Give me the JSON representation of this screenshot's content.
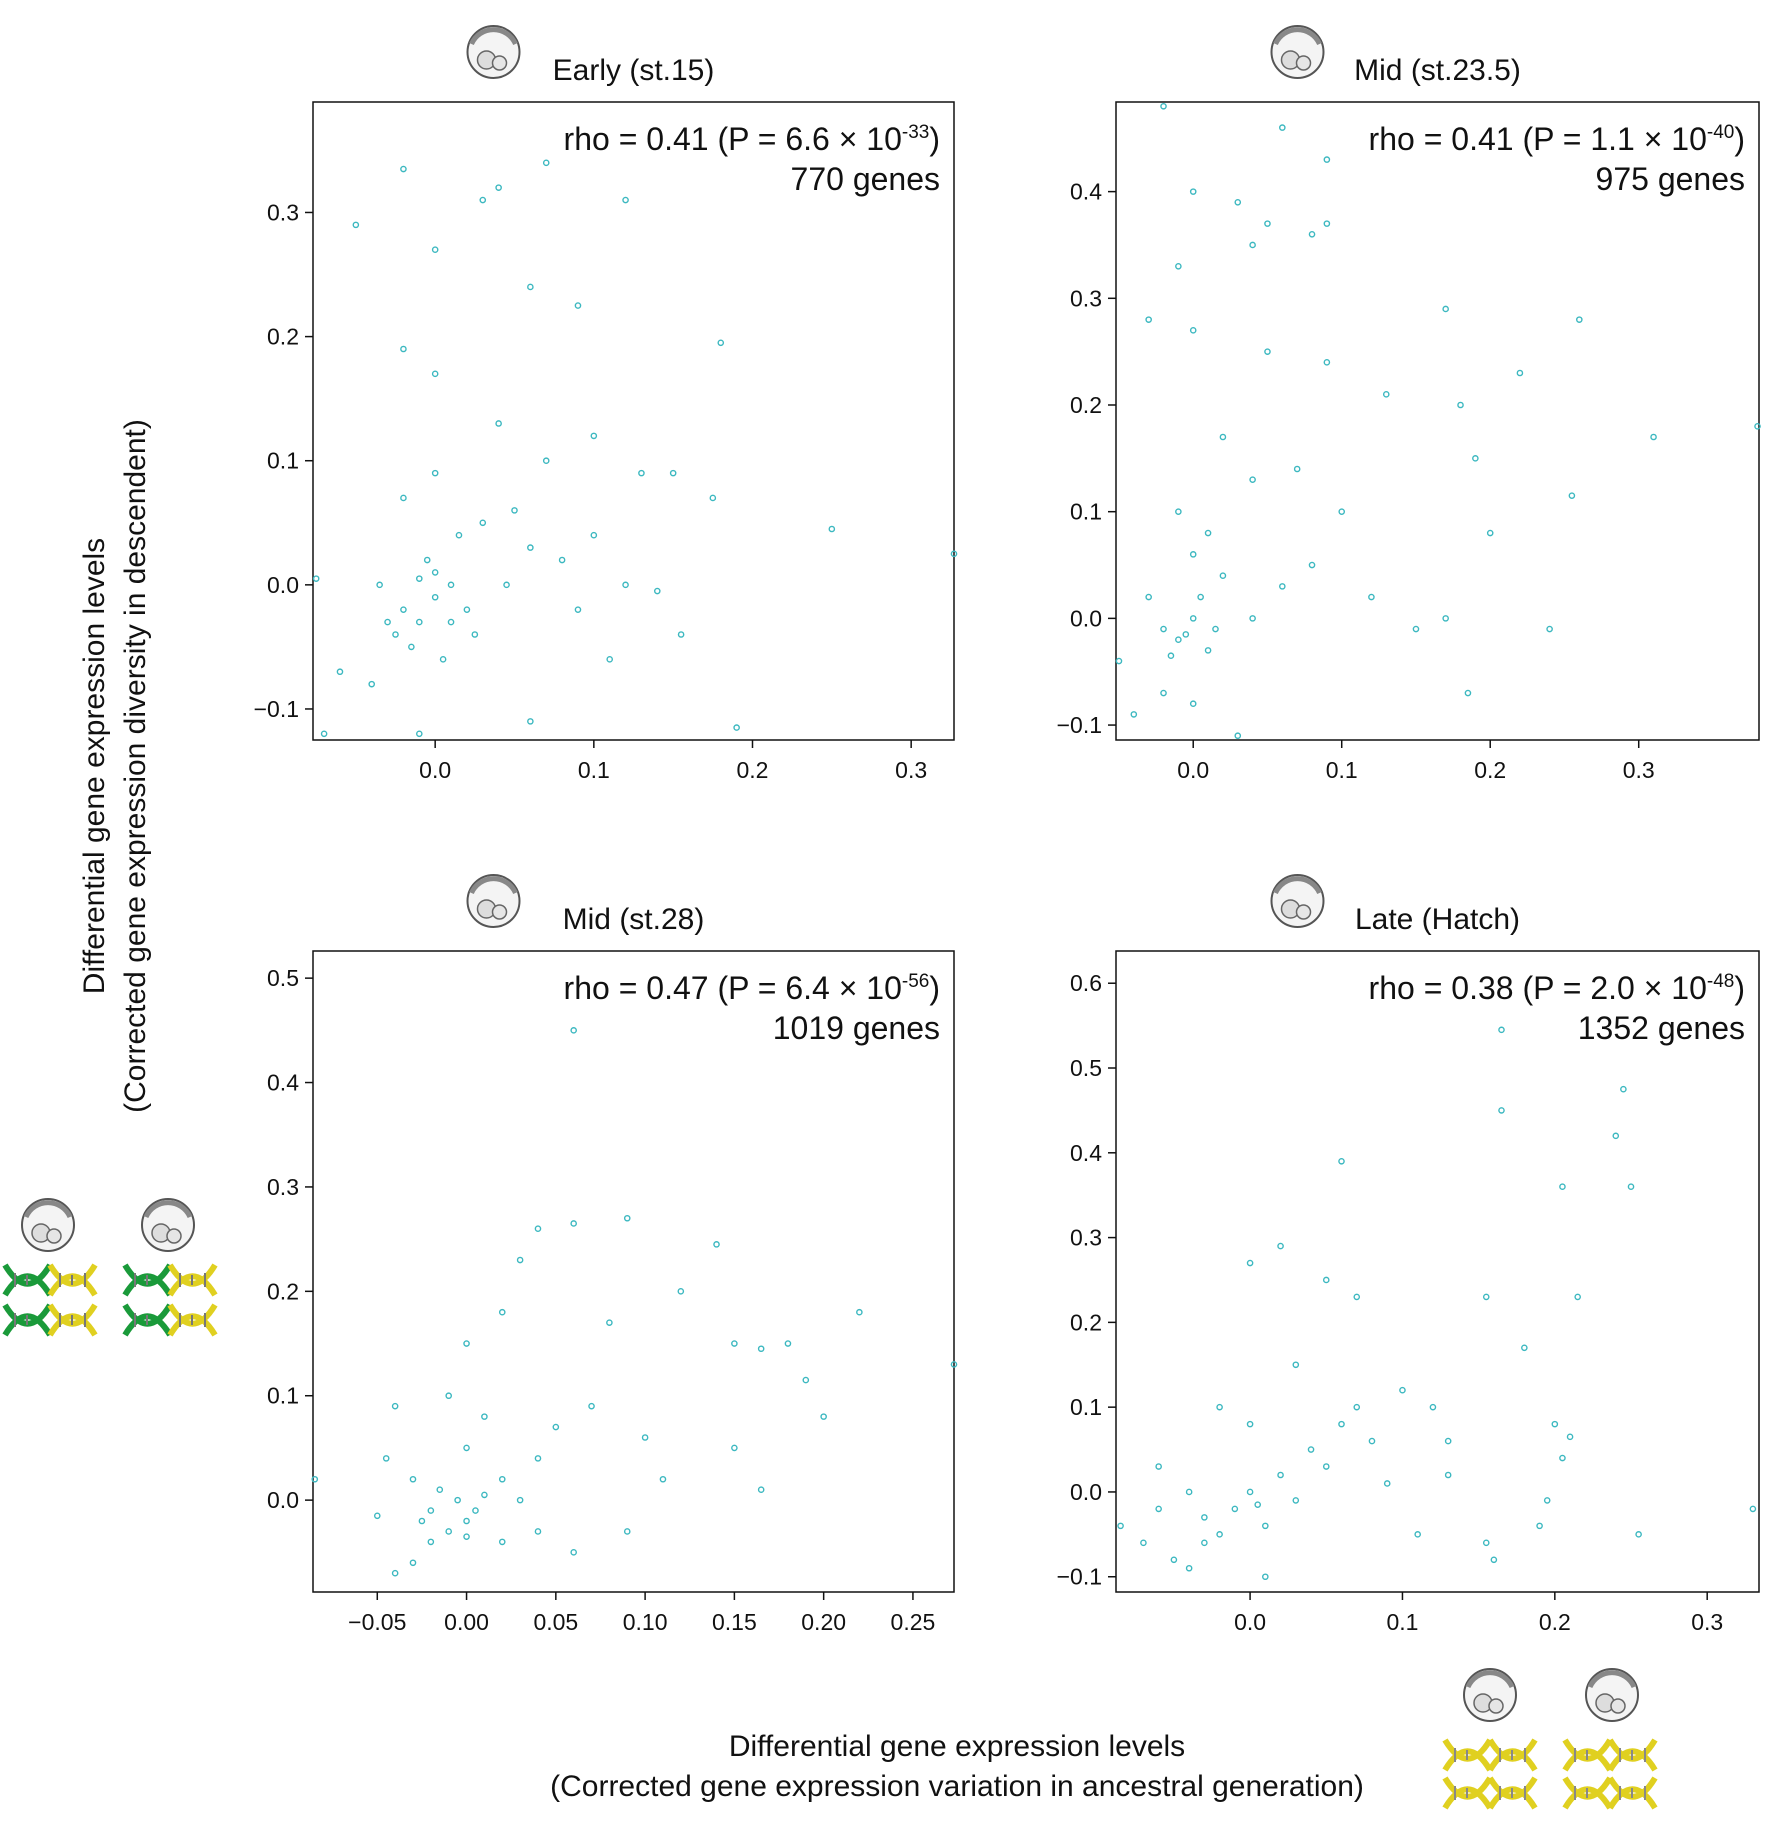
{
  "ylabel": [
    "Differential gene expression levels",
    "(Corrected gene expression diversity in descendent)"
  ],
  "xlabel": [
    "Differential gene expression levels",
    "(Corrected gene expression variation in ancestral generation)"
  ],
  "chart_data": [
    {
      "type": "scatter",
      "title": "Early (st.15)",
      "rho": "rho = 0.41 (P = 6.6 × 10",
      "p_exponent": "-33",
      "rho_close": ")",
      "genes": "770 genes",
      "color": "#3cb8c0",
      "xlim": [
        -0.077,
        0.327
      ],
      "ylim": [
        -0.125,
        0.389
      ],
      "xticks": [
        {
          "value": 0,
          "label": "0.0"
        },
        0.1,
        0.2,
        0.3
      ],
      "yticks": [
        {
          "value": -0.1,
          "label": "−0.1"
        },
        {
          "value": 0,
          "label": "0.0"
        },
        0.1,
        0.2,
        0.3
      ],
      "x": [
        -0.07,
        -0.05,
        -0.02,
        0.0,
        0.03,
        0.04,
        0.07,
        0.12,
        0.18,
        0.25,
        0.19,
        0.327,
        0.06,
        0.09,
        0.0,
        -0.02,
        0.04,
        0.1,
        0.13,
        0.15,
        0.175,
        0.14,
        0.155,
        0.11,
        0.06,
        -0.01,
        -0.04,
        -0.06,
        -0.075,
        -0.03,
        -0.02,
        -0.01,
        0.0,
        0.01,
        0.02,
        -0.005,
        0.015,
        0.03,
        0.05,
        0.06,
        0.08,
        0.09,
        -0.02,
        0.0,
        0.07,
        -0.015,
        0.005,
        0.025,
        -0.035,
        0.045,
        0.1,
        0.12,
        -0.025,
        0.01,
        0.0,
        -0.01
      ],
      "y": [
        -0.12,
        0.29,
        0.335,
        0.27,
        0.31,
        0.32,
        0.34,
        0.31,
        0.195,
        0.045,
        -0.115,
        0.025,
        0.24,
        0.225,
        0.17,
        0.19,
        0.13,
        0.12,
        0.09,
        0.09,
        0.07,
        -0.005,
        -0.04,
        -0.06,
        -0.11,
        -0.12,
        -0.08,
        -0.07,
        0.005,
        -0.03,
        -0.02,
        -0.03,
        -0.01,
        0.0,
        -0.02,
        0.02,
        0.04,
        0.05,
        0.06,
        0.03,
        0.02,
        -0.02,
        0.07,
        0.09,
        0.1,
        -0.05,
        -0.06,
        -0.04,
        0.0,
        0.0,
        0.04,
        0.0,
        -0.04,
        -0.03,
        0.01,
        0.005
      ]
    },
    {
      "type": "scatter",
      "title": "Mid (st.23.5)",
      "rho": "rho = 0.41 (P = 1.1 × 10",
      "p_exponent": "-40",
      "rho_close": ")",
      "genes": "975 genes",
      "color": "#3cb8c0",
      "xlim": [
        -0.052,
        0.381
      ],
      "ylim": [
        -0.114,
        0.484
      ],
      "xticks": [
        {
          "value": 0,
          "label": "0.0"
        },
        0.1,
        0.2,
        0.3
      ],
      "yticks": [
        {
          "value": -0.1,
          "label": "−0.1"
        },
        {
          "value": 0,
          "label": "0.0"
        },
        0.1,
        0.2,
        0.3,
        0.4
      ],
      "x": [
        -0.02,
        0.0,
        0.06,
        0.09,
        0.03,
        0.05,
        0.08,
        0.09,
        -0.01,
        0.04,
        -0.03,
        0.0,
        0.05,
        0.09,
        0.17,
        0.26,
        0.22,
        0.31,
        0.38,
        0.18,
        0.13,
        0.19,
        0.2,
        0.255,
        0.24,
        0.185,
        0.17,
        0.15,
        0.12,
        0.1,
        0.07,
        0.04,
        0.02,
        -0.05,
        -0.04,
        -0.02,
        0.0,
        0.03,
        -0.01,
        -0.02,
        0.0,
        0.01,
        -0.015,
        0.005,
        0.02,
        0.0,
        -0.03,
        0.04,
        0.06,
        0.08,
        -0.01,
        0.01,
        -0.005,
        0.015
      ],
      "y": [
        0.48,
        0.4,
        0.46,
        0.43,
        0.39,
        0.37,
        0.36,
        0.37,
        0.33,
        0.35,
        0.28,
        0.27,
        0.25,
        0.24,
        0.29,
        0.28,
        0.23,
        0.17,
        0.18,
        0.2,
        0.21,
        0.15,
        0.08,
        0.115,
        -0.01,
        -0.07,
        0.0,
        -0.01,
        0.02,
        0.1,
        0.14,
        0.13,
        0.17,
        -0.04,
        -0.09,
        -0.07,
        -0.08,
        -0.11,
        -0.02,
        -0.01,
        0.0,
        -0.03,
        -0.035,
        0.02,
        0.04,
        0.06,
        0.02,
        0.0,
        0.03,
        0.05,
        0.1,
        0.08,
        -0.015,
        -0.01
      ]
    },
    {
      "type": "scatter",
      "title": "Mid (st.28)",
      "rho": "rho = 0.47 (P = 6.4 × 10",
      "p_exponent": "-56",
      "rho_close": ")",
      "genes": "1019 genes",
      "color": "#3cb8c0",
      "xlim": [
        -0.086,
        0.273
      ],
      "ylim": [
        -0.088,
        0.526
      ],
      "xticks": [
        {
          "value": -0.05,
          "label": "−0.05"
        },
        {
          "value": 0,
          "label": "0.00"
        },
        0.05,
        {
          "value": 0.1,
          "label": "0.10"
        },
        0.15,
        {
          "value": 0.2,
          "label": "0.20"
        },
        0.25
      ],
      "yticks": [
        {
          "value": 0,
          "label": "0.0"
        },
        0.1,
        0.2,
        0.3,
        0.4,
        0.5
      ],
      "x": [
        -0.085,
        -0.05,
        -0.045,
        -0.04,
        -0.03,
        -0.04,
        -0.01,
        0.0,
        0.02,
        0.03,
        0.04,
        0.06,
        0.09,
        0.06,
        0.14,
        0.12,
        0.08,
        0.15,
        0.165,
        0.18,
        0.19,
        0.2,
        0.22,
        0.165,
        0.15,
        0.1,
        0.09,
        0.06,
        0.04,
        -0.02,
        -0.01,
        0.0,
        0.005,
        -0.005,
        0.01,
        -0.015,
        0.02,
        0.03,
        0.04,
        0.05,
        0.07,
        0.0,
        0.01,
        -0.02,
        -0.03,
        0.02,
        0.273,
        0.11,
        -0.025,
        0.0
      ],
      "y": [
        0.02,
        -0.015,
        0.04,
        0.09,
        -0.06,
        -0.07,
        0.1,
        0.15,
        0.18,
        0.23,
        0.26,
        0.265,
        0.27,
        0.45,
        0.245,
        0.2,
        0.17,
        0.15,
        0.145,
        0.15,
        0.115,
        0.08,
        0.18,
        0.01,
        0.05,
        0.06,
        -0.03,
        -0.05,
        -0.03,
        -0.04,
        -0.03,
        -0.02,
        -0.01,
        0.0,
        0.005,
        0.01,
        0.02,
        0.0,
        0.04,
        0.07,
        0.09,
        0.05,
        0.08,
        -0.01,
        0.02,
        -0.04,
        0.13,
        0.02,
        -0.02,
        -0.035
      ]
    },
    {
      "type": "scatter",
      "title": "Late (Hatch)",
      "rho": "rho = 0.38 (P = 2.0 × 10",
      "p_exponent": "-48",
      "rho_close": ")",
      "genes": "1352 genes",
      "color": "#3cb8c0",
      "xlim": [
        -0.088,
        0.334
      ],
      "ylim": [
        -0.118,
        0.638
      ],
      "xticks": [
        {
          "value": 0,
          "label": "0.0"
        },
        0.1,
        0.2,
        0.3
      ],
      "yticks": [
        {
          "value": -0.1,
          "label": "−0.1"
        },
        {
          "value": 0,
          "label": "0.0"
        },
        0.1,
        0.2,
        0.3,
        0.4,
        0.5,
        0.6
      ],
      "x": [
        -0.085,
        -0.07,
        -0.06,
        -0.05,
        -0.04,
        -0.03,
        -0.02,
        -0.01,
        0.0,
        0.01,
        0.02,
        0.03,
        0.04,
        0.05,
        0.06,
        0.07,
        0.08,
        0.1,
        0.12,
        0.13,
        0.0,
        0.02,
        0.05,
        0.06,
        0.07,
        0.165,
        0.165,
        0.245,
        0.24,
        0.25,
        0.205,
        0.215,
        0.155,
        0.18,
        0.2,
        0.205,
        0.21,
        0.195,
        0.19,
        0.255,
        0.33,
        0.155,
        0.16,
        0.13,
        0.11,
        0.09,
        -0.04,
        0.01,
        -0.02,
        -0.06,
        0.0,
        0.03,
        -0.03,
        0.005
      ],
      "y": [
        -0.04,
        -0.06,
        -0.02,
        -0.08,
        0.0,
        -0.03,
        -0.05,
        -0.02,
        0.0,
        -0.04,
        0.02,
        -0.01,
        0.05,
        0.03,
        0.08,
        0.1,
        0.06,
        0.12,
        0.1,
        0.06,
        0.27,
        0.29,
        0.25,
        0.39,
        0.23,
        0.545,
        0.45,
        0.475,
        0.42,
        0.36,
        0.36,
        0.23,
        0.23,
        0.17,
        0.08,
        0.04,
        0.065,
        -0.01,
        -0.04,
        -0.05,
        -0.02,
        -0.06,
        -0.08,
        0.02,
        -0.05,
        0.01,
        -0.09,
        -0.1,
        0.1,
        0.03,
        0.08,
        0.15,
        -0.06,
        -0.015
      ]
    }
  ]
}
